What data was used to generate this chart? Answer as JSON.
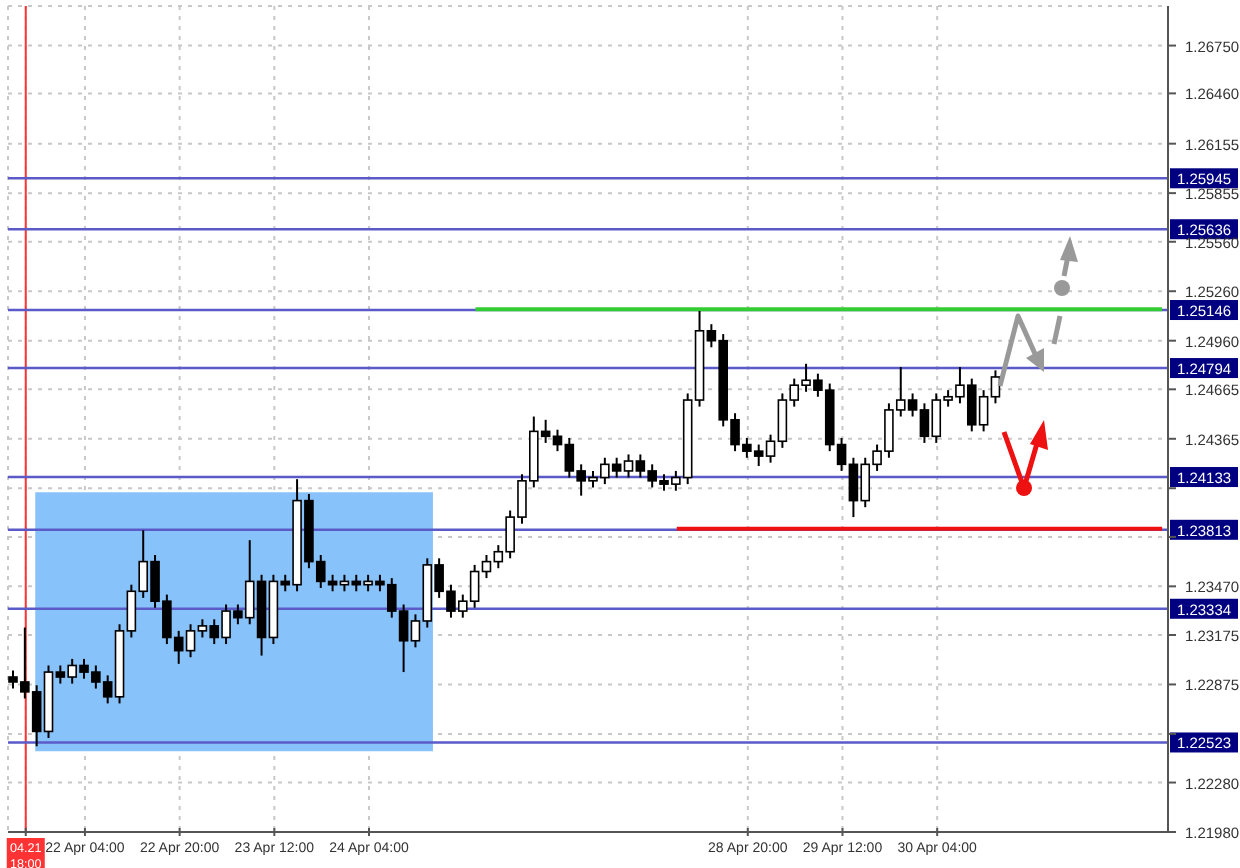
{
  "chart_data": {
    "type": "candlestick",
    "color": "#000000",
    "grid": true,
    "categories": [
      null,
      "04.21 18:00",
      null,
      null,
      null,
      null,
      "22 Apr 04:00",
      null,
      null,
      null,
      null,
      null,
      null,
      null,
      "22 Apr 20:00",
      null,
      null,
      null,
      null,
      null,
      null,
      null,
      "23 Apr 12:00",
      null,
      null,
      null,
      null,
      null,
      null,
      null,
      "24 Apr 04:00",
      null,
      null,
      null,
      null,
      null,
      null,
      null,
      null,
      null,
      null,
      null,
      null,
      null,
      null,
      null,
      null,
      null,
      null,
      null,
      null,
      null,
      null,
      null,
      null,
      null,
      null,
      null,
      null,
      null,
      null,
      null,
      "28 Apr 20:00",
      null,
      null,
      null,
      null,
      null,
      null,
      null,
      "29 Apr 12:00",
      null,
      null,
      null,
      null,
      null,
      null,
      null,
      "30 Apr 04:00",
      null,
      null,
      null,
      null,
      null,
      null,
      null,
      null,
      null,
      null,
      null,
      null,
      null,
      null,
      null,
      null,
      null,
      null,
      null
    ],
    "ohlc": [
      [
        1.2292,
        1.2296,
        1.2285,
        1.2289
      ],
      [
        1.2289,
        1.2322,
        1.2279,
        1.2283
      ],
      [
        1.2283,
        1.2287,
        1.225,
        1.2259
      ],
      [
        1.2259,
        1.2299,
        1.2255,
        1.2295
      ],
      [
        1.2295,
        1.2299,
        1.2288,
        1.2292
      ],
      [
        1.2292,
        1.2303,
        1.2288,
        1.2299
      ],
      [
        1.2299,
        1.2303,
        1.2291,
        1.2295
      ],
      [
        1.2295,
        1.2299,
        1.2285,
        1.2289
      ],
      [
        1.2289,
        1.2293,
        1.2276,
        1.228
      ],
      [
        1.228,
        1.2324,
        1.2276,
        1.232
      ],
      [
        1.232,
        1.2348,
        1.2316,
        1.2344
      ],
      [
        1.2344,
        1.2381,
        1.234,
        1.2362
      ],
      [
        1.2362,
        1.2366,
        1.2334,
        1.2338
      ],
      [
        1.2338,
        1.2342,
        1.2312,
        1.2316
      ],
      [
        1.2316,
        1.232,
        1.23,
        1.2308
      ],
      [
        1.2308,
        1.2324,
        1.2304,
        1.232
      ],
      [
        1.232,
        1.2327,
        1.2316,
        1.2323
      ],
      [
        1.2323,
        1.2327,
        1.2312,
        1.2316
      ],
      [
        1.2316,
        1.2336,
        1.2312,
        1.2332
      ],
      [
        1.2332,
        1.2336,
        1.2324,
        1.2328
      ],
      [
        1.2328,
        1.2375,
        1.2324,
        1.235
      ],
      [
        1.235,
        1.2354,
        1.2305,
        1.2316
      ],
      [
        1.2316,
        1.2354,
        1.2312,
        1.235
      ],
      [
        1.235,
        1.2354,
        1.2344,
        1.2348
      ],
      [
        1.2348,
        1.2412,
        1.2344,
        1.2399
      ],
      [
        1.2399,
        1.2403,
        1.2358,
        1.2362
      ],
      [
        1.2362,
        1.2366,
        1.2346,
        1.235
      ],
      [
        1.235,
        1.2354,
        1.2344,
        1.2348
      ],
      [
        1.2348,
        1.2354,
        1.2344,
        1.235
      ],
      [
        1.235,
        1.2354,
        1.2344,
        1.2348
      ],
      [
        1.2348,
        1.2354,
        1.2344,
        1.235
      ],
      [
        1.235,
        1.2354,
        1.2344,
        1.2348
      ],
      [
        1.2348,
        1.2352,
        1.2328,
        1.2332
      ],
      [
        1.2332,
        1.2336,
        1.2295,
        1.2314
      ],
      [
        1.2314,
        1.233,
        1.231,
        1.2326
      ],
      [
        1.2326,
        1.2364,
        1.2322,
        1.236
      ],
      [
        1.236,
        1.2364,
        1.234,
        1.2344
      ],
      [
        1.2344,
        1.2348,
        1.2328,
        1.2332
      ],
      [
        1.2332,
        1.2342,
        1.2328,
        1.2338
      ],
      [
        1.2338,
        1.236,
        1.2334,
        1.2356
      ],
      [
        1.2356,
        1.2366,
        1.2352,
        1.2362
      ],
      [
        1.2362,
        1.2372,
        1.2358,
        1.2368
      ],
      [
        1.2368,
        1.2393,
        1.2364,
        1.2389
      ],
      [
        1.2389,
        1.2415,
        1.2385,
        1.2411
      ],
      [
        1.2411,
        1.245,
        1.2407,
        1.2441
      ],
      [
        1.2441,
        1.2448,
        1.2434,
        1.2438
      ],
      [
        1.2438,
        1.2442,
        1.2429,
        1.2433
      ],
      [
        1.2433,
        1.2437,
        1.2413,
        1.2417
      ],
      [
        1.2417,
        1.2421,
        1.2402,
        1.2411
      ],
      [
        1.2411,
        1.2417,
        1.2407,
        1.2413
      ],
      [
        1.2413,
        1.2425,
        1.2409,
        1.2421
      ],
      [
        1.2421,
        1.2425,
        1.2413,
        1.2417
      ],
      [
        1.2417,
        1.2427,
        1.2413,
        1.2423
      ],
      [
        1.2423,
        1.2427,
        1.2413,
        1.2417
      ],
      [
        1.2417,
        1.2421,
        1.2407,
        1.2411
      ],
      [
        1.2411,
        1.2415,
        1.2405,
        1.2409
      ],
      [
        1.2409,
        1.2417,
        1.2405,
        1.2413
      ],
      [
        1.2413,
        1.2464,
        1.2409,
        1.246
      ],
      [
        1.246,
        1.2514,
        1.2456,
        1.2502
      ],
      [
        1.2502,
        1.2506,
        1.2492,
        1.2496
      ],
      [
        1.2496,
        1.25,
        1.2444,
        1.2448
      ],
      [
        1.2448,
        1.2452,
        1.2429,
        1.2433
      ],
      [
        1.2433,
        1.2437,
        1.2425,
        1.2429
      ],
      [
        1.2429,
        1.2433,
        1.242,
        1.2426
      ],
      [
        1.2426,
        1.2439,
        1.2422,
        1.2435
      ],
      [
        1.2435,
        1.2464,
        1.2431,
        1.246
      ],
      [
        1.246,
        1.2473,
        1.2456,
        1.2469
      ],
      [
        1.2469,
        1.2482,
        1.2465,
        1.2472
      ],
      [
        1.2472,
        1.2476,
        1.2462,
        1.2466
      ],
      [
        1.2466,
        1.247,
        1.2429,
        1.2433
      ],
      [
        1.2433,
        1.2437,
        1.2417,
        1.2421
      ],
      [
        1.2421,
        1.2425,
        1.2389,
        1.2399
      ],
      [
        1.2399,
        1.2425,
        1.2395,
        1.2421
      ],
      [
        1.2421,
        1.2433,
        1.2417,
        1.2429
      ],
      [
        1.2429,
        1.2458,
        1.2425,
        1.2454
      ],
      [
        1.2454,
        1.248,
        1.245,
        1.246
      ],
      [
        1.246,
        1.2464,
        1.245,
        1.2454
      ],
      [
        1.2454,
        1.2458,
        1.2434,
        1.2438
      ],
      [
        1.2438,
        1.2464,
        1.2434,
        1.246
      ],
      [
        1.246,
        1.2466,
        1.2456,
        1.2462
      ],
      [
        1.2462,
        1.248,
        1.2458,
        1.2469
      ],
      [
        1.2469,
        1.2473,
        1.2441,
        1.2445
      ],
      [
        1.2445,
        1.2466,
        1.2441,
        1.2462
      ],
      [
        1.2462,
        1.2478,
        1.2458,
        1.2474
      ],
      null,
      null,
      null,
      null,
      null,
      null,
      null,
      null,
      null,
      null,
      null,
      null,
      null,
      null
    ],
    "series": [
      {
        "type": "line",
        "color": "#33cc33",
        "values": [
          null,
          null,
          null,
          null,
          null,
          null,
          null,
          null,
          null,
          null,
          null,
          null,
          null,
          null,
          null,
          null,
          null,
          null,
          null,
          null,
          null,
          null,
          null,
          null,
          null,
          null,
          null,
          null,
          null,
          null,
          null,
          null,
          null,
          null,
          null,
          null,
          null,
          null,
          null,
          1.2515,
          1.2515,
          1.2515,
          1.2515,
          1.2515,
          1.2515,
          1.2515,
          1.2515,
          1.2515,
          1.2515,
          1.2515,
          1.2515,
          1.2515,
          1.2515,
          1.2515,
          1.2515,
          1.2515,
          1.2515,
          1.2515,
          1.2515,
          1.2515,
          1.2515,
          1.2515,
          1.2515,
          1.2515,
          1.2515,
          1.2515,
          1.2515,
          1.2515,
          1.2515,
          1.2515,
          1.2515,
          1.2515,
          1.2515,
          1.2515,
          1.2515,
          1.2515,
          1.2515,
          1.2515,
          1.2515,
          1.2515,
          1.2515,
          1.2515,
          1.2515,
          1.2515,
          1.2515,
          1.2515,
          1.2515,
          1.2515,
          1.2515,
          1.2515,
          1.2515,
          1.2515,
          1.2515,
          1.2515,
          1.2515,
          1.2515,
          1.2515,
          1.2515
        ]
      },
      {
        "type": "line",
        "color": "#ee1111",
        "values": [
          null,
          null,
          null,
          null,
          null,
          null,
          null,
          null,
          null,
          null,
          null,
          null,
          null,
          null,
          null,
          null,
          null,
          null,
          null,
          null,
          null,
          null,
          null,
          null,
          null,
          null,
          null,
          null,
          null,
          null,
          null,
          null,
          null,
          null,
          null,
          null,
          null,
          null,
          null,
          null,
          null,
          null,
          null,
          null,
          null,
          null,
          null,
          null,
          null,
          null,
          null,
          null,
          null,
          null,
          null,
          null,
          1.2382,
          1.2382,
          1.2382,
          1.2382,
          1.2382,
          1.2382,
          1.2382,
          1.2382,
          1.2382,
          1.2382,
          1.2382,
          1.2382,
          1.2382,
          1.2382,
          1.2382,
          1.2382,
          1.2382,
          1.2382,
          1.2382,
          1.2382,
          1.2382,
          1.2382,
          1.2382,
          1.2382,
          1.2382,
          1.2382,
          1.2382,
          1.2382,
          1.2382,
          1.2382,
          1.2382,
          1.2382,
          1.2382,
          1.2382,
          1.2382,
          1.2382,
          1.2382,
          1.2382,
          1.2382,
          1.2382,
          1.2382,
          1.2382
        ]
      }
    ],
    "ylim": [
      1.2198,
      1.2699
    ],
    "yticks": [
      {
        "value": 1.2198,
        "label": "1.21980"
      },
      {
        "value": 1.2228,
        "label": "1.22280"
      },
      {
        "value": 1.22575,
        "label": null
      },
      {
        "value": 1.22875,
        "label": "1.22875"
      },
      {
        "value": 1.23175,
        "label": "1.23175"
      },
      {
        "value": 1.2347,
        "label": "1.23470"
      },
      {
        "value": 1.2377,
        "label": null
      },
      {
        "value": 1.24065,
        "label": null
      },
      {
        "value": 1.24365,
        "label": "1.24365"
      },
      {
        "value": 1.24665,
        "label": "1.24665"
      },
      {
        "value": 1.2496,
        "label": "1.24960"
      },
      {
        "value": 1.2526,
        "label": "1.25260"
      },
      {
        "value": 1.2556,
        "label": "1.25560"
      },
      {
        "value": 1.25855,
        "label": "1.25855"
      },
      {
        "value": 1.26155,
        "label": "1.26155"
      },
      {
        "value": 1.2646,
        "label": "1.26460"
      },
      {
        "value": 1.2675,
        "label": "1.26750"
      }
    ],
    "ref_lines": [
      {
        "axis": "y",
        "value": 1.25945,
        "label": "1.25945",
        "color": "#5a5ac8"
      },
      {
        "axis": "y",
        "value": 1.25636,
        "label": "1.25636",
        "color": "#5a5ac8"
      },
      {
        "axis": "y",
        "value": 1.25146,
        "label": "1.25146",
        "color": "#5a5ac8"
      },
      {
        "axis": "y",
        "value": 1.24794,
        "label": "1.24794",
        "color": "#5a5ac8"
      },
      {
        "axis": "y",
        "value": 1.24133,
        "label": "1.24133",
        "color": "#5a5ac8"
      },
      {
        "axis": "y",
        "value": 1.23813,
        "label": "1.23813",
        "color": "#5a5ac8"
      },
      {
        "axis": "y",
        "value": 1.23334,
        "label": "1.23334",
        "color": "#5a5ac8"
      },
      {
        "axis": "y",
        "value": 1.22523,
        "label": "1.22523",
        "color": "#5a5ac8"
      },
      {
        "axis": "x",
        "value": "04.21 18:00",
        "color": "#ff3333"
      }
    ],
    "bands": [
      {
        "axis": "y",
        "from": 1.2247,
        "to": 1.2404,
        "color": "#88c2fa"
      }
    ]
  }
}
